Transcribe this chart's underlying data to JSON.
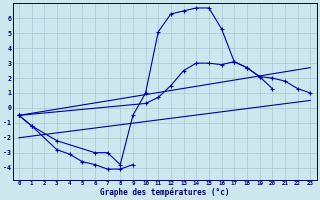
{
  "background_color": "#cce8ee",
  "grid_color": "#aac8d0",
  "line_color": "#0000aa",
  "xlabel": "Graphe des températures (°c)",
  "ylim": [
    -4.8,
    7.0
  ],
  "xlim": [
    -0.5,
    23.5
  ],
  "yticks": [
    -4,
    -3,
    -2,
    -1,
    0,
    1,
    2,
    3,
    4,
    5,
    6
  ],
  "xticks": [
    0,
    1,
    2,
    3,
    4,
    5,
    6,
    7,
    8,
    9,
    10,
    11,
    12,
    13,
    14,
    15,
    16,
    17,
    18,
    19,
    20,
    21,
    22,
    23
  ],
  "curve_main_x": [
    0,
    1,
    3,
    6,
    7,
    8,
    9,
    10,
    11,
    12,
    13,
    14,
    15,
    16,
    17,
    18,
    19,
    20
  ],
  "curve_main_y": [
    -0.5,
    -1.2,
    -2.2,
    -3.0,
    -3.0,
    -3.8,
    -0.5,
    1.0,
    5.1,
    6.3,
    6.5,
    6.7,
    6.7,
    5.3,
    3.1,
    2.7,
    2.1,
    1.3
  ],
  "curve_low_x": [
    0,
    1,
    3,
    4,
    5,
    6,
    7,
    8,
    9
  ],
  "curve_low_y": [
    -0.5,
    -1.2,
    -2.8,
    -3.1,
    -3.6,
    -3.8,
    -4.1,
    -4.1,
    -3.8
  ],
  "curve_upper_x": [
    0,
    10,
    11,
    12,
    13,
    14,
    15,
    16,
    17,
    18,
    19,
    20,
    21,
    22,
    23
  ],
  "curve_upper_y": [
    -0.5,
    0.3,
    0.7,
    1.5,
    2.5,
    3.0,
    3.0,
    2.9,
    3.1,
    2.7,
    2.1,
    2.0,
    1.8,
    1.3,
    1.0
  ],
  "line1_x": [
    0,
    23
  ],
  "line1_y": [
    -0.5,
    2.7
  ],
  "line2_x": [
    0,
    23
  ],
  "line2_y": [
    -2.0,
    0.5
  ]
}
